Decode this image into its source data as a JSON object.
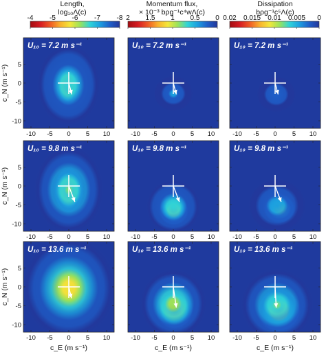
{
  "columns": [
    {
      "title": "Length,",
      "subtitle": "log₁₀Λ(c)",
      "cbar_ticks": [
        "-4",
        "-5",
        "-6",
        "-7",
        "-8"
      ],
      "palette": "reversed"
    },
    {
      "title": "Momentum flux,",
      "subtitle": "× 10⁻³ bρg⁻¹c⁴wΛ(c)",
      "cbar_ticks": [
        "2",
        "1.5",
        "1",
        "0.5",
        "0"
      ],
      "palette": "reversed"
    },
    {
      "title": "Dissipation",
      "subtitle": "bρg⁻¹c⁵Λ(c)",
      "cbar_ticks": [
        "0.02",
        "0.015",
        "0.01",
        "0.005",
        "0"
      ],
      "palette": "reversed"
    }
  ],
  "rows": [
    {
      "label": "U₁₀ = 7.2 m s⁻¹"
    },
    {
      "label": "U₁₀ = 9.8 m s⁻¹"
    },
    {
      "label": "U₁₀ = 13.6 m s⁻¹"
    }
  ],
  "axes": {
    "xlabel": "c_E (m s⁻¹)",
    "ylabel": "c_N (m s⁻¹)",
    "xticks": [
      "-10",
      "-5",
      "0",
      "5",
      "10"
    ],
    "yticks": [
      "5",
      "0",
      "-5",
      "-10"
    ],
    "xlim": [
      -12,
      12
    ],
    "ylim": [
      -12,
      12
    ]
  },
  "colors": {
    "background": "#1f3a9e",
    "crosshair": "#ffffff",
    "palette": [
      "#24379a",
      "#1f5fc9",
      "#1ca0e0",
      "#2fd3d8",
      "#9be35a",
      "#f4e63a",
      "#f9b02d",
      "#ef5a25",
      "#d51b22",
      "#a40d12"
    ]
  },
  "panels": [
    {
      "row": 0,
      "col": 0,
      "blob": [
        {
          "cx": -0.3,
          "cy": -0.7,
          "sx": 1.6,
          "sy": 2.8,
          "amp": 1.0
        },
        {
          "cx": -0.1,
          "cy": -0.5,
          "sx": 4.2,
          "sy": 5.4,
          "amp": 0.35
        }
      ],
      "arrow": {
        "x1": 0,
        "y1": 0,
        "x2": 0.8,
        "y2": -3.0
      }
    },
    {
      "row": 0,
      "col": 1,
      "blob": [
        {
          "cx": 0.0,
          "cy": -2.8,
          "sx": 2.6,
          "sy": 2.4,
          "amp": 0.18
        }
      ],
      "arrow": {
        "x1": 0,
        "y1": 0,
        "x2": 0.8,
        "y2": -3.0
      }
    },
    {
      "row": 0,
      "col": 2,
      "blob": [
        {
          "cx": 0.3,
          "cy": -3.0,
          "sx": 2.6,
          "sy": 2.4,
          "amp": 0.15
        }
      ],
      "arrow": {
        "x1": 0,
        "y1": 0,
        "x2": 0.8,
        "y2": -3.0
      }
    },
    {
      "row": 1,
      "col": 0,
      "blob": [
        {
          "cx": 0.0,
          "cy": -1.2,
          "sx": 2.0,
          "sy": 3.2,
          "amp": 1.0
        },
        {
          "cx": 0.0,
          "cy": -1.0,
          "sx": 4.6,
          "sy": 5.8,
          "amp": 0.4
        }
      ],
      "arrow": {
        "x1": 0,
        "y1": 0,
        "x2": 1.6,
        "y2": -4.2
      }
    },
    {
      "row": 1,
      "col": 1,
      "blob": [
        {
          "cx": 0.1,
          "cy": -6.5,
          "sx": 2.0,
          "sy": 2.0,
          "amp": 0.8
        },
        {
          "cx": 0.0,
          "cy": -5.5,
          "sx": 3.6,
          "sy": 3.6,
          "amp": 0.35
        }
      ],
      "arrow": {
        "x1": 0,
        "y1": 0,
        "x2": 1.6,
        "y2": -4.2
      }
    },
    {
      "row": 1,
      "col": 2,
      "blob": [
        {
          "cx": 1.2,
          "cy": -6.0,
          "sx": 2.4,
          "sy": 2.2,
          "amp": 0.55
        },
        {
          "cx": 0.5,
          "cy": -5.2,
          "sx": 3.8,
          "sy": 3.6,
          "amp": 0.25
        }
      ],
      "arrow": {
        "x1": 0,
        "y1": 0,
        "x2": 1.6,
        "y2": -4.2
      }
    },
    {
      "row": 2,
      "col": 0,
      "blob": [
        {
          "cx": 0.3,
          "cy": -0.4,
          "sx": 2.4,
          "sy": 3.2,
          "amp": 1.0
        },
        {
          "cx": 0.0,
          "cy": -0.3,
          "sx": 6.2,
          "sy": 6.8,
          "amp": 0.55
        }
      ],
      "arrow": {
        "x1": 0,
        "y1": 0,
        "x2": 0.7,
        "y2": -3.0
      }
    },
    {
      "row": 2,
      "col": 1,
      "blob": [
        {
          "cx": 0.3,
          "cy": -5.8,
          "sx": 2.6,
          "sy": 2.8,
          "amp": 1.0
        },
        {
          "cx": 0.0,
          "cy": -4.5,
          "sx": 4.4,
          "sy": 4.6,
          "amp": 0.45
        }
      ],
      "arrow": {
        "x1": 0,
        "y1": 0,
        "x2": 0.8,
        "y2": -5.5
      }
    },
    {
      "row": 2,
      "col": 2,
      "blob": [
        {
          "cx": 1.0,
          "cy": -6.2,
          "sx": 3.0,
          "sy": 3.0,
          "amp": 0.85
        },
        {
          "cx": 0.5,
          "cy": -4.8,
          "sx": 4.8,
          "sy": 4.8,
          "amp": 0.4
        }
      ],
      "arrow": {
        "x1": 0,
        "y1": 0,
        "x2": 0.3,
        "y2": -5.5
      }
    }
  ]
}
